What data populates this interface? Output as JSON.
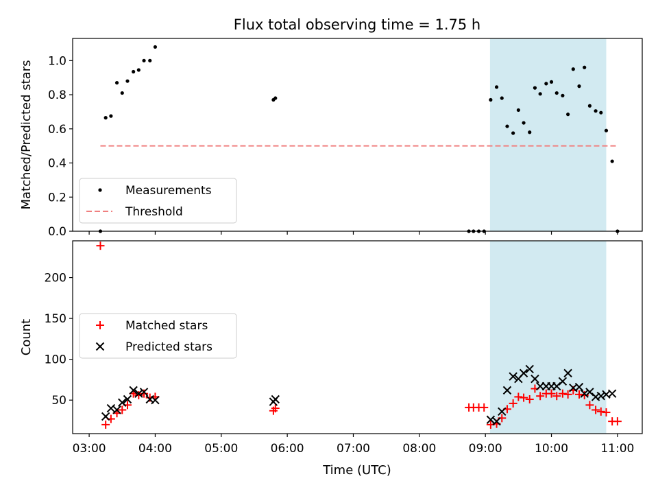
{
  "chart_data": {
    "title": "Flux total observing time = 1.75 h",
    "xlabel": "Time (UTC)",
    "xtick_labels": [
      "03:00",
      "04:00",
      "05:00",
      "06:00",
      "07:00",
      "08:00",
      "09:00",
      "10:00",
      "11:00"
    ],
    "xtick_hours": [
      3,
      4,
      5,
      6,
      7,
      8,
      9,
      10,
      11
    ],
    "xlim_hours": [
      2.75,
      11.375
    ],
    "highlight_span_hours": [
      9.07,
      10.83
    ],
    "highlight_color": "#add8e6",
    "panels": [
      {
        "name": "ratio",
        "type": "scatter",
        "ylabel": "Matched/Predicted stars",
        "ylim": [
          0,
          1.13
        ],
        "yticks": [
          0.0,
          0.2,
          0.4,
          0.6,
          0.8,
          1.0
        ],
        "ytick_labels": [
          "0.0",
          "0.2",
          "0.4",
          "0.6",
          "0.8",
          "1.0"
        ],
        "legend_position": "lower-left",
        "series": [
          {
            "name": "Measurements",
            "kind": "dot",
            "color": "#000000",
            "points": [
              [
                3.17,
                0.0
              ],
              [
                3.25,
                0.665
              ],
              [
                3.33,
                0.675
              ],
              [
                3.42,
                0.87
              ],
              [
                3.5,
                0.81
              ],
              [
                3.58,
                0.88
              ],
              [
                3.67,
                0.935
              ],
              [
                3.75,
                0.945
              ],
              [
                3.83,
                1.0
              ],
              [
                3.92,
                1.0
              ],
              [
                4.0,
                1.08
              ],
              [
                5.79,
                0.77
              ],
              [
                5.82,
                0.78
              ],
              [
                8.75,
                0.0
              ],
              [
                8.82,
                0.0
              ],
              [
                8.9,
                0.0
              ],
              [
                8.98,
                0.0
              ],
              [
                9.08,
                0.77
              ],
              [
                9.17,
                0.845
              ],
              [
                9.25,
                0.78
              ],
              [
                9.33,
                0.615
              ],
              [
                9.42,
                0.575
              ],
              [
                9.5,
                0.71
              ],
              [
                9.58,
                0.635
              ],
              [
                9.67,
                0.58
              ],
              [
                9.75,
                0.84
              ],
              [
                9.83,
                0.805
              ],
              [
                9.92,
                0.865
              ],
              [
                10.0,
                0.875
              ],
              [
                10.08,
                0.81
              ],
              [
                10.17,
                0.795
              ],
              [
                10.25,
                0.685
              ],
              [
                10.33,
                0.95
              ],
              [
                10.42,
                0.85
              ],
              [
                10.5,
                0.96
              ],
              [
                10.58,
                0.735
              ],
              [
                10.67,
                0.705
              ],
              [
                10.75,
                0.695
              ],
              [
                10.83,
                0.59
              ],
              [
                10.92,
                0.41
              ],
              [
                11.0,
                0.0
              ]
            ]
          },
          {
            "name": "Threshold",
            "kind": "dashed-line",
            "color": "#f08080",
            "points": [
              [
                3.17,
                0.5
              ],
              [
                11.0,
                0.5
              ]
            ]
          }
        ]
      },
      {
        "name": "counts",
        "type": "scatter",
        "ylabel": "Count",
        "ylim": [
          9,
          245
        ],
        "yticks": [
          50,
          100,
          150,
          200
        ],
        "ytick_labels": [
          "50",
          "100",
          "150",
          "200"
        ],
        "legend_position": "center-left",
        "series": [
          {
            "name": "Matched stars",
            "kind": "plus",
            "color": "#ff0000",
            "points": [
              [
                3.17,
                239
              ],
              [
                3.25,
                20
              ],
              [
                3.33,
                27
              ],
              [
                3.42,
                34
              ],
              [
                3.5,
                38
              ],
              [
                3.58,
                44
              ],
              [
                3.67,
                58
              ],
              [
                3.75,
                56
              ],
              [
                3.83,
                58
              ],
              [
                3.92,
                53
              ],
              [
                4.0,
                54
              ],
              [
                5.79,
                37
              ],
              [
                5.82,
                40
              ],
              [
                8.75,
                41
              ],
              [
                8.82,
                41
              ],
              [
                8.9,
                41
              ],
              [
                8.98,
                41
              ],
              [
                9.08,
                20
              ],
              [
                9.17,
                21
              ],
              [
                9.25,
                28
              ],
              [
                9.33,
                39
              ],
              [
                9.42,
                46
              ],
              [
                9.5,
                54
              ],
              [
                9.58,
                53
              ],
              [
                9.67,
                51
              ],
              [
                9.75,
                64
              ],
              [
                9.83,
                55
              ],
              [
                9.92,
                58
              ],
              [
                10.0,
                58
              ],
              [
                10.08,
                55
              ],
              [
                10.17,
                58
              ],
              [
                10.25,
                57
              ],
              [
                10.33,
                62
              ],
              [
                10.42,
                57
              ],
              [
                10.5,
                56
              ],
              [
                10.58,
                44
              ],
              [
                10.67,
                38
              ],
              [
                10.75,
                36
              ],
              [
                10.83,
                35
              ],
              [
                10.92,
                24
              ],
              [
                11.0,
                24
              ]
            ]
          },
          {
            "name": "Predicted stars",
            "kind": "x",
            "color": "#000000",
            "points": [
              [
                3.25,
                30
              ],
              [
                3.33,
                40
              ],
              [
                3.42,
                38
              ],
              [
                3.5,
                47
              ],
              [
                3.58,
                51
              ],
              [
                3.67,
                62
              ],
              [
                3.75,
                58
              ],
              [
                3.83,
                60
              ],
              [
                3.92,
                51
              ],
              [
                4.0,
                50
              ],
              [
                5.79,
                48
              ],
              [
                5.82,
                51
              ],
              [
                9.08,
                26
              ],
              [
                9.17,
                24
              ],
              [
                9.25,
                36
              ],
              [
                9.33,
                62
              ],
              [
                9.42,
                79
              ],
              [
                9.5,
                76
              ],
              [
                9.58,
                83
              ],
              [
                9.67,
                88
              ],
              [
                9.75,
                76
              ],
              [
                9.83,
                67
              ],
              [
                9.92,
                67
              ],
              [
                10.0,
                67
              ],
              [
                10.08,
                67
              ],
              [
                10.17,
                73
              ],
              [
                10.25,
                83
              ],
              [
                10.33,
                65
              ],
              [
                10.42,
                66
              ],
              [
                10.5,
                58
              ],
              [
                10.58,
                60
              ],
              [
                10.67,
                54
              ],
              [
                10.75,
                55
              ],
              [
                10.83,
                57
              ],
              [
                10.92,
                58
              ]
            ]
          }
        ]
      }
    ]
  }
}
